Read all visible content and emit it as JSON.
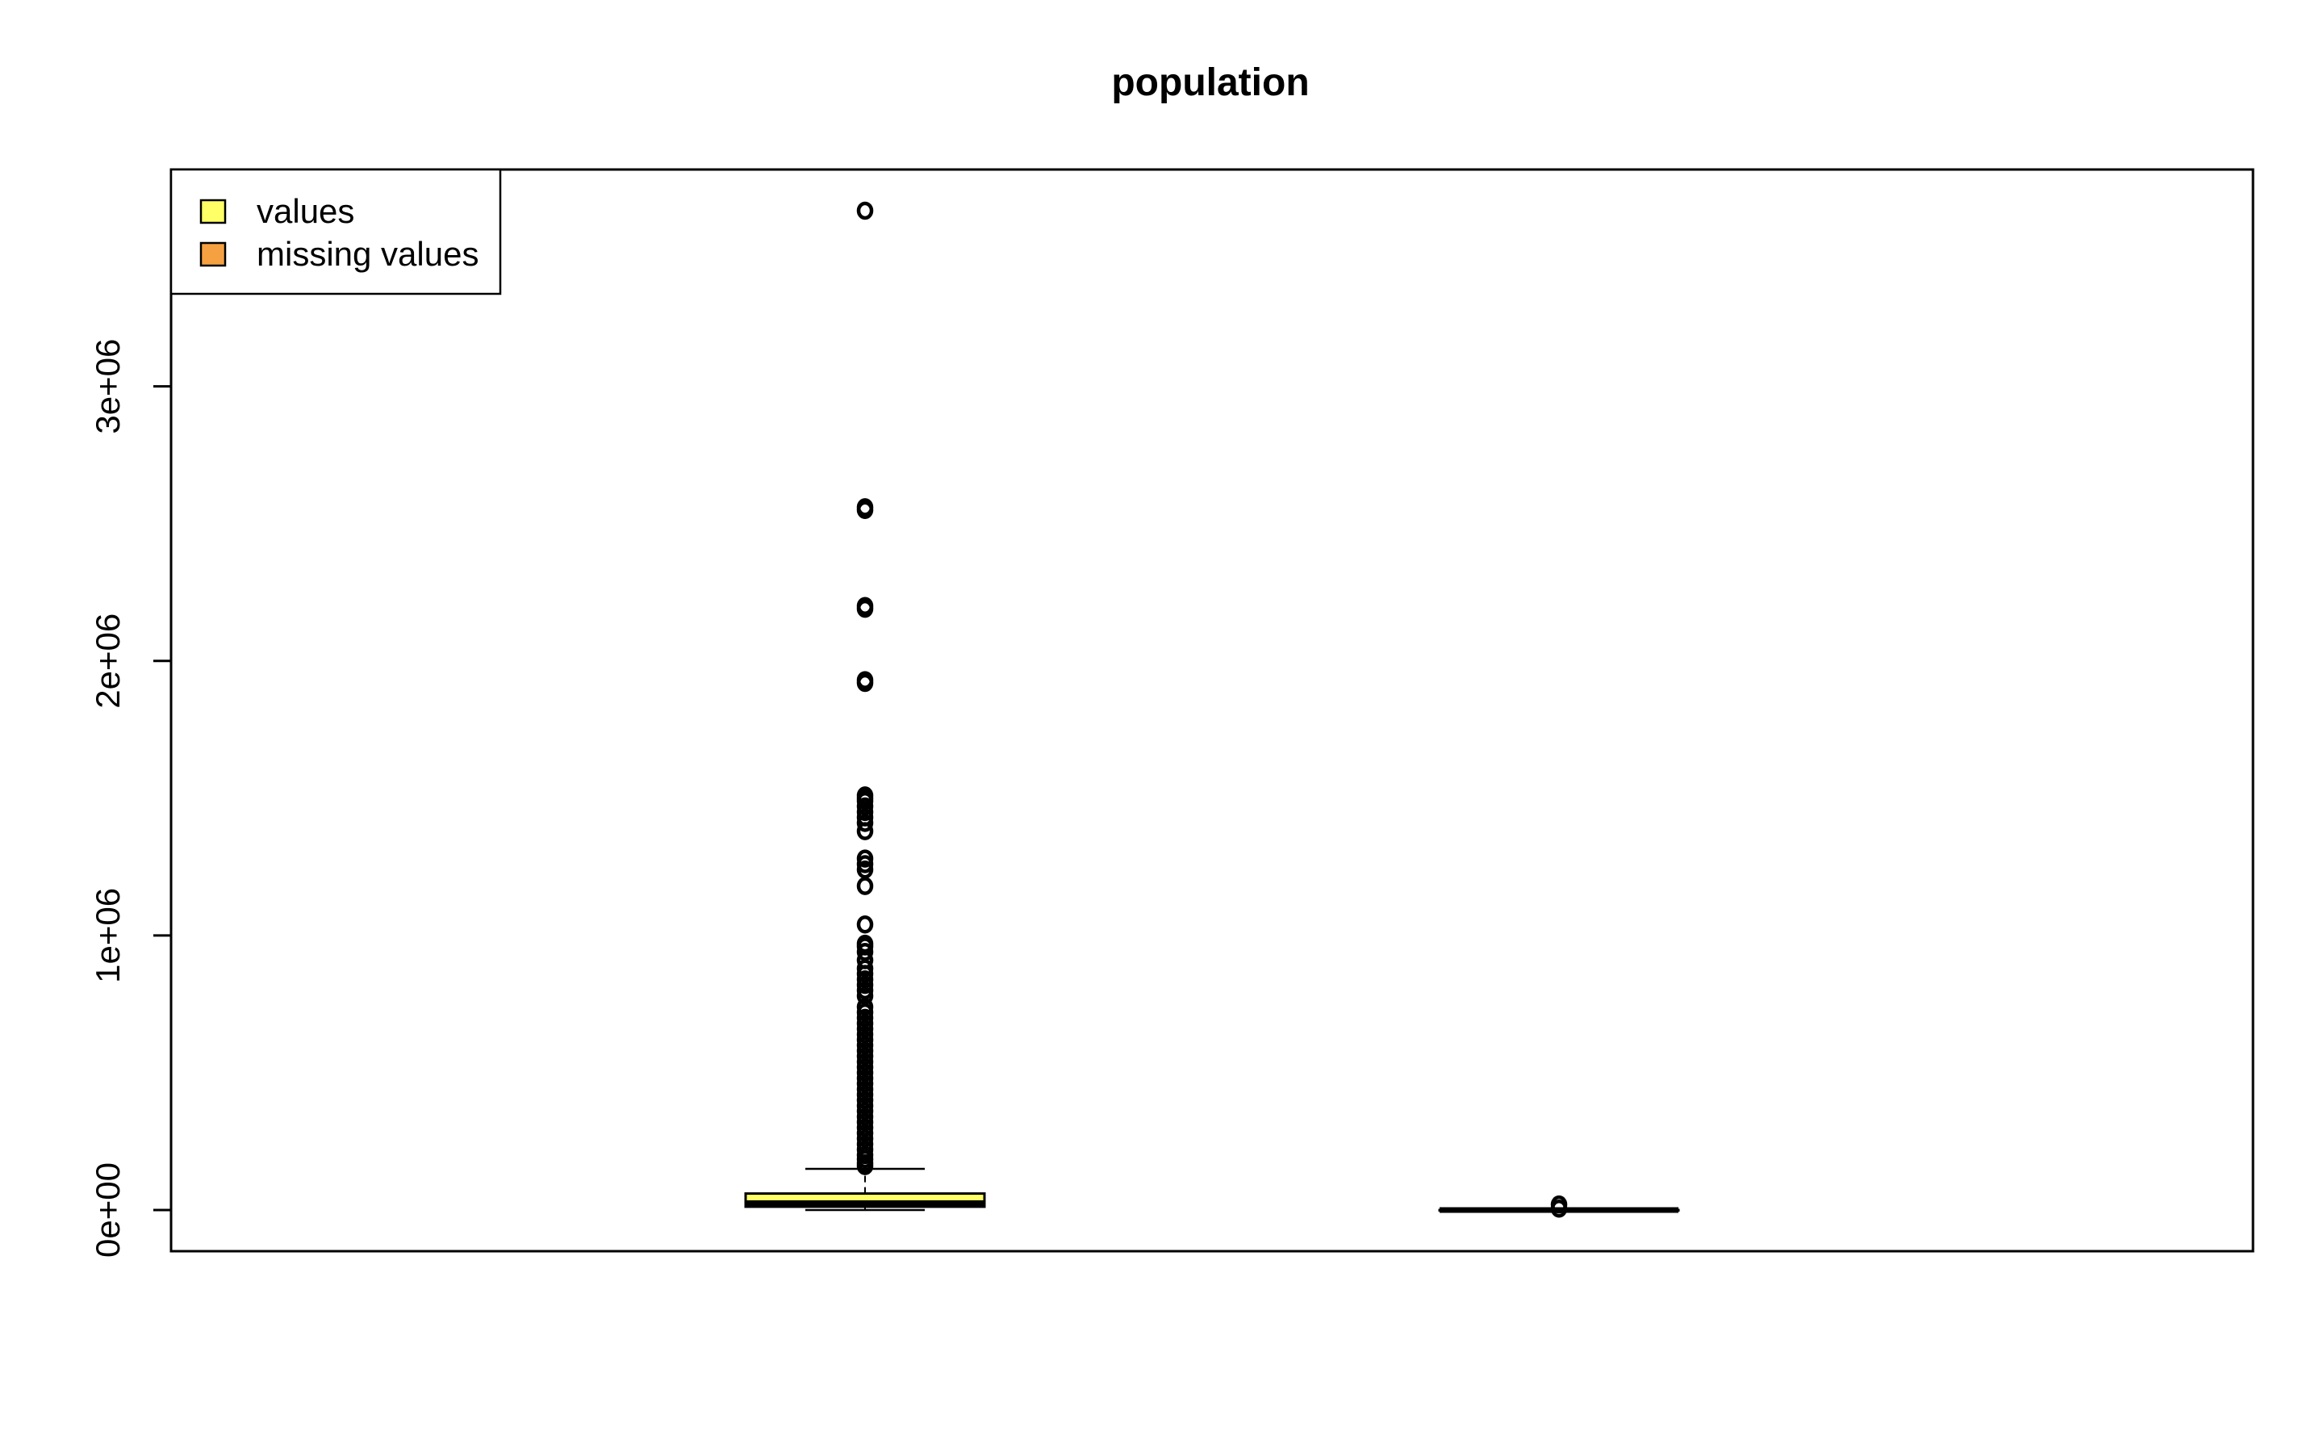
{
  "chart_data": {
    "type": "boxplot",
    "title": "population",
    "xlabel": "",
    "ylabel": "",
    "ylim": [
      -150000,
      3790000
    ],
    "yticks": [
      0,
      1000000,
      2000000,
      3000000
    ],
    "ytick_labels": [
      "0e+00",
      "1e+06",
      "2e+06",
      "3e+06"
    ],
    "grid": false,
    "legend_position": "top-left",
    "legend": [
      {
        "label": "values",
        "color": "#ffff66"
      },
      {
        "label": "missing values",
        "color": "#f5a142"
      }
    ],
    "series": [
      {
        "box": {
          "whisker_low": 0,
          "q1": 12000,
          "median": 25000,
          "q3": 60000,
          "whisker_high": 150000
        },
        "color": "#ffff66",
        "outliers": [
          3640000,
          2560000,
          2550000,
          2200000,
          2190000,
          1930000,
          1920000,
          1510000,
          1500000,
          1490000,
          1470000,
          1450000,
          1430000,
          1410000,
          1380000,
          1280000,
          1260000,
          1240000,
          1180000,
          1040000,
          970000,
          960000,
          940000,
          910000,
          880000,
          860000,
          840000,
          820000,
          800000,
          780000,
          740000,
          720000,
          700000,
          680000,
          660000,
          640000,
          620000,
          600000,
          580000,
          560000,
          540000,
          520000,
          500000,
          480000,
          460000,
          440000,
          420000,
          400000,
          380000,
          360000,
          340000,
          320000,
          300000,
          280000,
          260000,
          240000,
          220000,
          200000,
          185000,
          170000,
          160000
        ]
      },
      {
        "box": {
          "whisker_low": 0,
          "q1": 0,
          "median": 0,
          "q3": 0,
          "whisker_high": 0
        },
        "color": "#f5a142",
        "outliers": [
          20000,
          5000
        ]
      }
    ]
  }
}
